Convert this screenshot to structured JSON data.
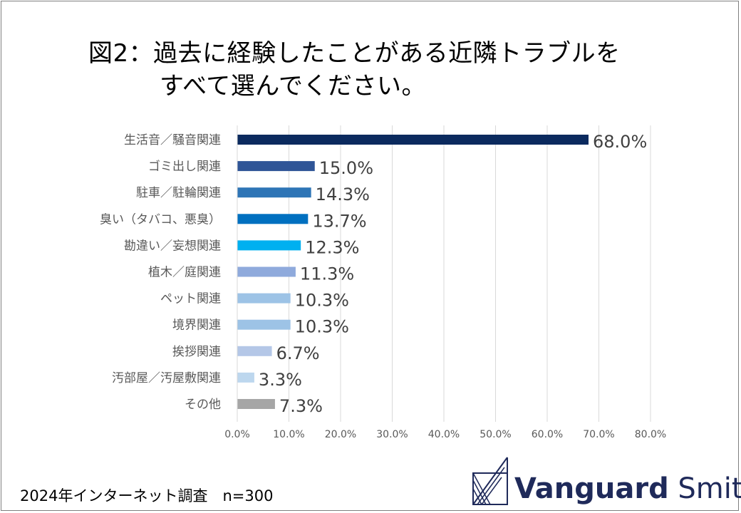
{
  "title": {
    "line1": "図2：過去に経験したことがある近隣トラブルを",
    "line2": "すべて選んでください。"
  },
  "chart_data": {
    "type": "bar",
    "orientation": "horizontal",
    "categories": [
      "生活音／騒音関連",
      "ゴミ出し関連",
      "駐車／駐輪関連",
      "臭い（タバコ、悪臭）",
      "勘違い／妄想関連",
      "植木／庭関連",
      "ペット関連",
      "境界関連",
      "挨拶関連",
      "汚部屋／汚屋敷関連",
      "その他"
    ],
    "values": [
      68.0,
      15.0,
      14.3,
      13.7,
      12.3,
      11.3,
      10.3,
      10.3,
      6.7,
      3.3,
      7.3
    ],
    "value_labels": [
      "68.0%",
      "15.0%",
      "14.3%",
      "13.7%",
      "12.3%",
      "11.3%",
      "10.3%",
      "10.3%",
      "6.7%",
      "3.3%",
      "7.3%"
    ],
    "colors": [
      "#0b2a5e",
      "#2f5597",
      "#2e75b6",
      "#0070c0",
      "#00b0f0",
      "#8faadc",
      "#9dc3e6",
      "#9dc3e6",
      "#b4c7e7",
      "#bdd7ee",
      "#a6a6a6"
    ],
    "xlim": [
      0,
      80
    ],
    "ticks": [
      0,
      10,
      20,
      30,
      40,
      50,
      60,
      70,
      80
    ],
    "tick_labels": [
      "0.0%",
      "10.0%",
      "20.0%",
      "30.0%",
      "40.0%",
      "50.0%",
      "60.0%",
      "70.0%",
      "80.0%"
    ],
    "grid": true
  },
  "footer": {
    "note": "2024年インターネット調査　n=300"
  },
  "brand": {
    "name_bold": "Vanguard",
    "name_light": " Smith"
  }
}
